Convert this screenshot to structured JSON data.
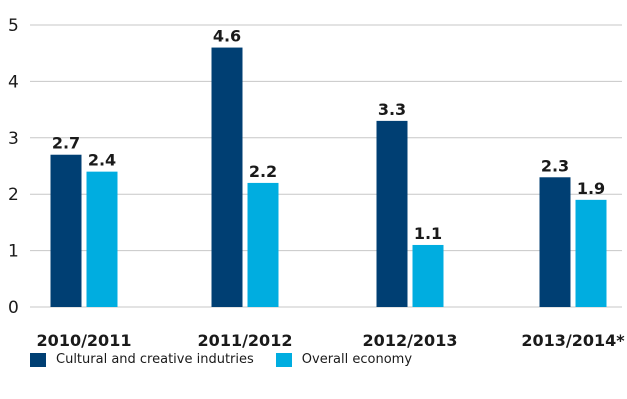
{
  "chart_data": {
    "type": "bar",
    "categories": [
      "2010/2011",
      "2011/2012",
      "2012/2013",
      "2013/2014*"
    ],
    "series": [
      {
        "name": "Cultural and creative indutries",
        "values": [
          2.7,
          4.6,
          3.3,
          2.3
        ],
        "color": "#003f73",
        "labels": [
          "2.7",
          "4.6",
          "3.3",
          "2.3"
        ]
      },
      {
        "name": "Overall economy",
        "values": [
          2.4,
          2.2,
          1.1,
          1.9
        ],
        "color": "#00ade0",
        "labels": [
          "2.4",
          "2.2",
          "1.1",
          "1.9"
        ]
      }
    ],
    "ylim": [
      0,
      5
    ],
    "yticks": [
      0,
      1,
      2,
      3,
      4,
      5
    ],
    "ytick_labels": [
      "0",
      "1",
      "2",
      "3",
      "4",
      "5"
    ],
    "grid": true,
    "legend_position": "bottom-left"
  }
}
